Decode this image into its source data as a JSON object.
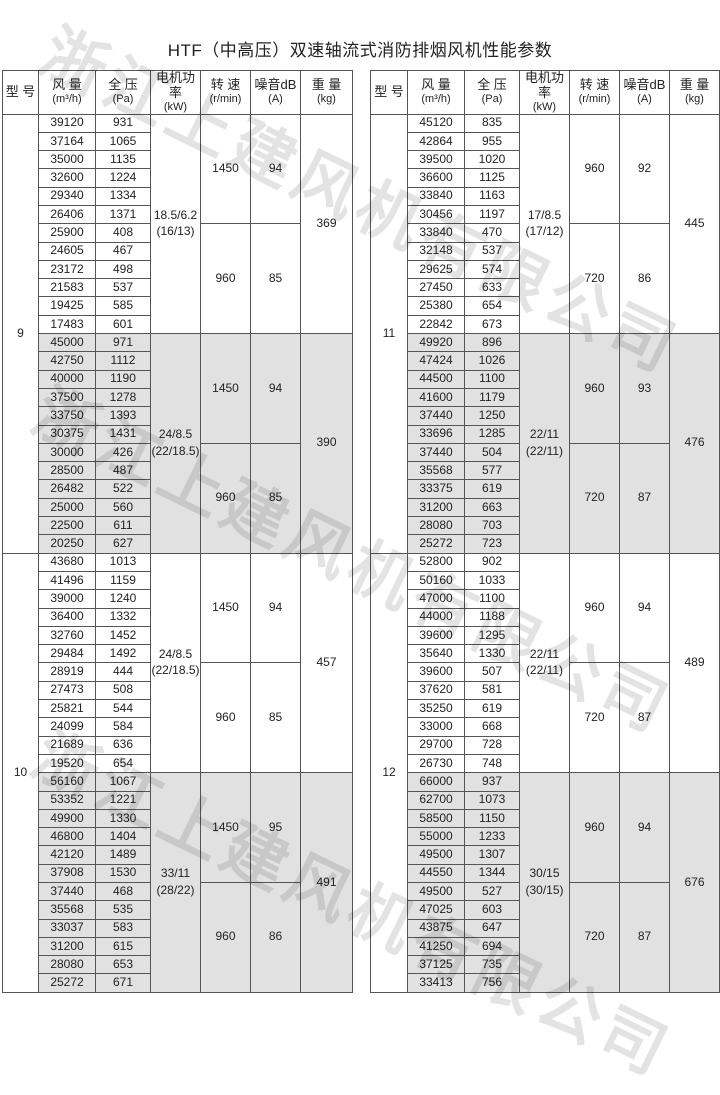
{
  "title": "HTF（中高压）双速轴流式消防排烟风机性能参数",
  "watermark": "浙江上建风机有限公司",
  "shade_color": "#e1e1e1",
  "headers": [
    {
      "main": "型 号",
      "sub": ""
    },
    {
      "main": "风 量",
      "sub": "(m³/h)"
    },
    {
      "main": "全 压",
      "sub": "(Pa)"
    },
    {
      "main": "电机功率",
      "sub": "(kW)"
    },
    {
      "main": "转 速",
      "sub": "(r/min)"
    },
    {
      "main": "噪音dB",
      "sub": "(A)"
    },
    {
      "main": "重 量",
      "sub": "(kg)"
    }
  ],
  "tables": [
    {
      "models": [
        {
          "model": "9",
          "groups": [
            {
              "motor": "18.5/6.2",
              "motor_sub": "(16/13)",
              "weight": "369",
              "shaded": false,
              "speeds": [
                {
                  "rpm": "1450",
                  "noise": "94",
                  "rows": [
                    [
                      "39120",
                      "931"
                    ],
                    [
                      "37164",
                      "1065"
                    ],
                    [
                      "35000",
                      "1135"
                    ],
                    [
                      "32600",
                      "1224"
                    ],
                    [
                      "29340",
                      "1334"
                    ],
                    [
                      "26406",
                      "1371"
                    ]
                  ]
                },
                {
                  "rpm": "960",
                  "noise": "85",
                  "rows": [
                    [
                      "25900",
                      "408"
                    ],
                    [
                      "24605",
                      "467"
                    ],
                    [
                      "23172",
                      "498"
                    ],
                    [
                      "21583",
                      "537"
                    ],
                    [
                      "19425",
                      "585"
                    ],
                    [
                      "17483",
                      "601"
                    ]
                  ]
                }
              ]
            },
            {
              "motor": "24/8.5",
              "motor_sub": "(22/18.5)",
              "weight": "390",
              "shaded": true,
              "speeds": [
                {
                  "rpm": "1450",
                  "noise": "94",
                  "rows": [
                    [
                      "45000",
                      "971"
                    ],
                    [
                      "42750",
                      "1112"
                    ],
                    [
                      "40000",
                      "1190"
                    ],
                    [
                      "37500",
                      "1278"
                    ],
                    [
                      "33750",
                      "1393"
                    ],
                    [
                      "30375",
                      "1431"
                    ]
                  ]
                },
                {
                  "rpm": "960",
                  "noise": "85",
                  "rows": [
                    [
                      "30000",
                      "426"
                    ],
                    [
                      "28500",
                      "487"
                    ],
                    [
                      "26482",
                      "522"
                    ],
                    [
                      "25000",
                      "560"
                    ],
                    [
                      "22500",
                      "611"
                    ],
                    [
                      "20250",
                      "627"
                    ]
                  ]
                }
              ]
            }
          ]
        },
        {
          "model": "10",
          "groups": [
            {
              "motor": "24/8.5",
              "motor_sub": "(22/18.5)",
              "weight": "457",
              "shaded": false,
              "speeds": [
                {
                  "rpm": "1450",
                  "noise": "94",
                  "rows": [
                    [
                      "43680",
                      "1013"
                    ],
                    [
                      "41496",
                      "1159"
                    ],
                    [
                      "39000",
                      "1240"
                    ],
                    [
                      "36400",
                      "1332"
                    ],
                    [
                      "32760",
                      "1452"
                    ],
                    [
                      "29484",
                      "1492"
                    ]
                  ]
                },
                {
                  "rpm": "960",
                  "noise": "85",
                  "rows": [
                    [
                      "28919",
                      "444"
                    ],
                    [
                      "27473",
                      "508"
                    ],
                    [
                      "25821",
                      "544"
                    ],
                    [
                      "24099",
                      "584"
                    ],
                    [
                      "21689",
                      "636"
                    ],
                    [
                      "19520",
                      "654"
                    ]
                  ]
                }
              ]
            },
            {
              "motor": "33/11",
              "motor_sub": "(28/22)",
              "weight": "491",
              "shaded": true,
              "speeds": [
                {
                  "rpm": "1450",
                  "noise": "95",
                  "rows": [
                    [
                      "56160",
                      "1067"
                    ],
                    [
                      "53352",
                      "1221"
                    ],
                    [
                      "49900",
                      "1330"
                    ],
                    [
                      "46800",
                      "1404"
                    ],
                    [
                      "42120",
                      "1489"
                    ],
                    [
                      "37908",
                      "1530"
                    ]
                  ]
                },
                {
                  "rpm": "960",
                  "noise": "86",
                  "rows": [
                    [
                      "37440",
                      "468"
                    ],
                    [
                      "35568",
                      "535"
                    ],
                    [
                      "33037",
                      "583"
                    ],
                    [
                      "31200",
                      "615"
                    ],
                    [
                      "28080",
                      "653"
                    ],
                    [
                      "25272",
                      "671"
                    ]
                  ]
                }
              ]
            }
          ]
        }
      ]
    },
    {
      "models": [
        {
          "model": "11",
          "groups": [
            {
              "motor": "17/8.5",
              "motor_sub": "(17/12)",
              "weight": "445",
              "shaded": false,
              "speeds": [
                {
                  "rpm": "960",
                  "noise": "92",
                  "rows": [
                    [
                      "45120",
                      "835"
                    ],
                    [
                      "42864",
                      "955"
                    ],
                    [
                      "39500",
                      "1020"
                    ],
                    [
                      "36600",
                      "1125"
                    ],
                    [
                      "33840",
                      "1163"
                    ],
                    [
                      "30456",
                      "1197"
                    ]
                  ]
                },
                {
                  "rpm": "720",
                  "noise": "86",
                  "rows": [
                    [
                      "33840",
                      "470"
                    ],
                    [
                      "32148",
                      "537"
                    ],
                    [
                      "29625",
                      "574"
                    ],
                    [
                      "27450",
                      "633"
                    ],
                    [
                      "25380",
                      "654"
                    ],
                    [
                      "22842",
                      "673"
                    ]
                  ]
                }
              ]
            },
            {
              "motor": "22/11",
              "motor_sub": "(22/11)",
              "weight": "476",
              "shaded": true,
              "speeds": [
                {
                  "rpm": "960",
                  "noise": "93",
                  "rows": [
                    [
                      "49920",
                      "896"
                    ],
                    [
                      "47424",
                      "1026"
                    ],
                    [
                      "44500",
                      "1100"
                    ],
                    [
                      "41600",
                      "1179"
                    ],
                    [
                      "37440",
                      "1250"
                    ],
                    [
                      "33696",
                      "1285"
                    ]
                  ]
                },
                {
                  "rpm": "720",
                  "noise": "87",
                  "rows": [
                    [
                      "37440",
                      "504"
                    ],
                    [
                      "35568",
                      "577"
                    ],
                    [
                      "33375",
                      "619"
                    ],
                    [
                      "31200",
                      "663"
                    ],
                    [
                      "28080",
                      "703"
                    ],
                    [
                      "25272",
                      "723"
                    ]
                  ]
                }
              ]
            }
          ]
        },
        {
          "model": "12",
          "groups": [
            {
              "motor": "22/11",
              "motor_sub": "(22/11)",
              "weight": "489",
              "shaded": false,
              "speeds": [
                {
                  "rpm": "960",
                  "noise": "94",
                  "rows": [
                    [
                      "52800",
                      "902"
                    ],
                    [
                      "50160",
                      "1033"
                    ],
                    [
                      "47000",
                      "1100"
                    ],
                    [
                      "44000",
                      "1188"
                    ],
                    [
                      "39600",
                      "1295"
                    ],
                    [
                      "35640",
                      "1330"
                    ]
                  ]
                },
                {
                  "rpm": "720",
                  "noise": "87",
                  "rows": [
                    [
                      "39600",
                      "507"
                    ],
                    [
                      "37620",
                      "581"
                    ],
                    [
                      "35250",
                      "619"
                    ],
                    [
                      "33000",
                      "668"
                    ],
                    [
                      "29700",
                      "728"
                    ],
                    [
                      "26730",
                      "748"
                    ]
                  ]
                }
              ]
            },
            {
              "motor": "30/15",
              "motor_sub": "(30/15)",
              "weight": "676",
              "shaded": true,
              "speeds": [
                {
                  "rpm": "960",
                  "noise": "94",
                  "rows": [
                    [
                      "66000",
                      "937"
                    ],
                    [
                      "62700",
                      "1073"
                    ],
                    [
                      "58500",
                      "1150"
                    ],
                    [
                      "55000",
                      "1233"
                    ],
                    [
                      "49500",
                      "1307"
                    ],
                    [
                      "44550",
                      "1344"
                    ]
                  ]
                },
                {
                  "rpm": "720",
                  "noise": "87",
                  "rows": [
                    [
                      "49500",
                      "527"
                    ],
                    [
                      "47025",
                      "603"
                    ],
                    [
                      "43875",
                      "647"
                    ],
                    [
                      "41250",
                      "694"
                    ],
                    [
                      "37125",
                      "735"
                    ],
                    [
                      "33413",
                      "756"
                    ]
                  ]
                }
              ]
            }
          ]
        }
      ]
    }
  ]
}
